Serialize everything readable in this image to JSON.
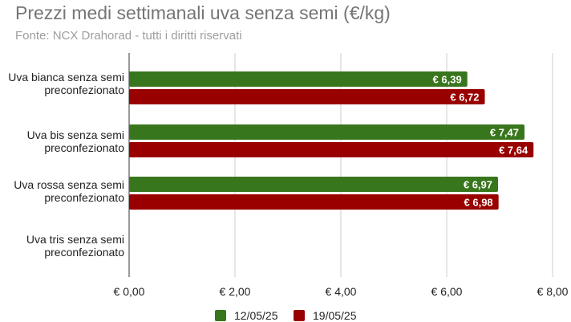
{
  "chart_data": {
    "type": "bar",
    "orientation": "horizontal",
    "title": "Prezzi medi settimanali uva senza semi (€/kg)",
    "subtitle": "Fonte: NCX Drahorad - tutti i diritti riservati",
    "categories": [
      "Uva bianca senza semi preconfezionato",
      "Uva bis senza semi preconfezionato",
      "Uva rossa senza semi preconfezionato",
      "Uva tris senza semi preconfezionato"
    ],
    "series": [
      {
        "name": "12/05/25",
        "color": "#38761d",
        "values": [
          6.39,
          7.47,
          6.97,
          null
        ],
        "data_labels": [
          "€ 6,39",
          "€ 7,47",
          "€ 6,97",
          ""
        ]
      },
      {
        "name": "19/05/25",
        "color": "#990000",
        "values": [
          6.72,
          7.64,
          6.98,
          null
        ],
        "data_labels": [
          "€ 6,72",
          "€ 7,64",
          "€ 6,98",
          ""
        ]
      }
    ],
    "xlim": [
      0,
      8
    ],
    "x_ticks": [
      0,
      2,
      4,
      6,
      8
    ],
    "x_tick_labels": [
      "€ 0,00",
      "€ 2,00",
      "€ 4,00",
      "€ 6,00",
      "€ 8,00"
    ],
    "grid": true,
    "legend": "bottom"
  }
}
